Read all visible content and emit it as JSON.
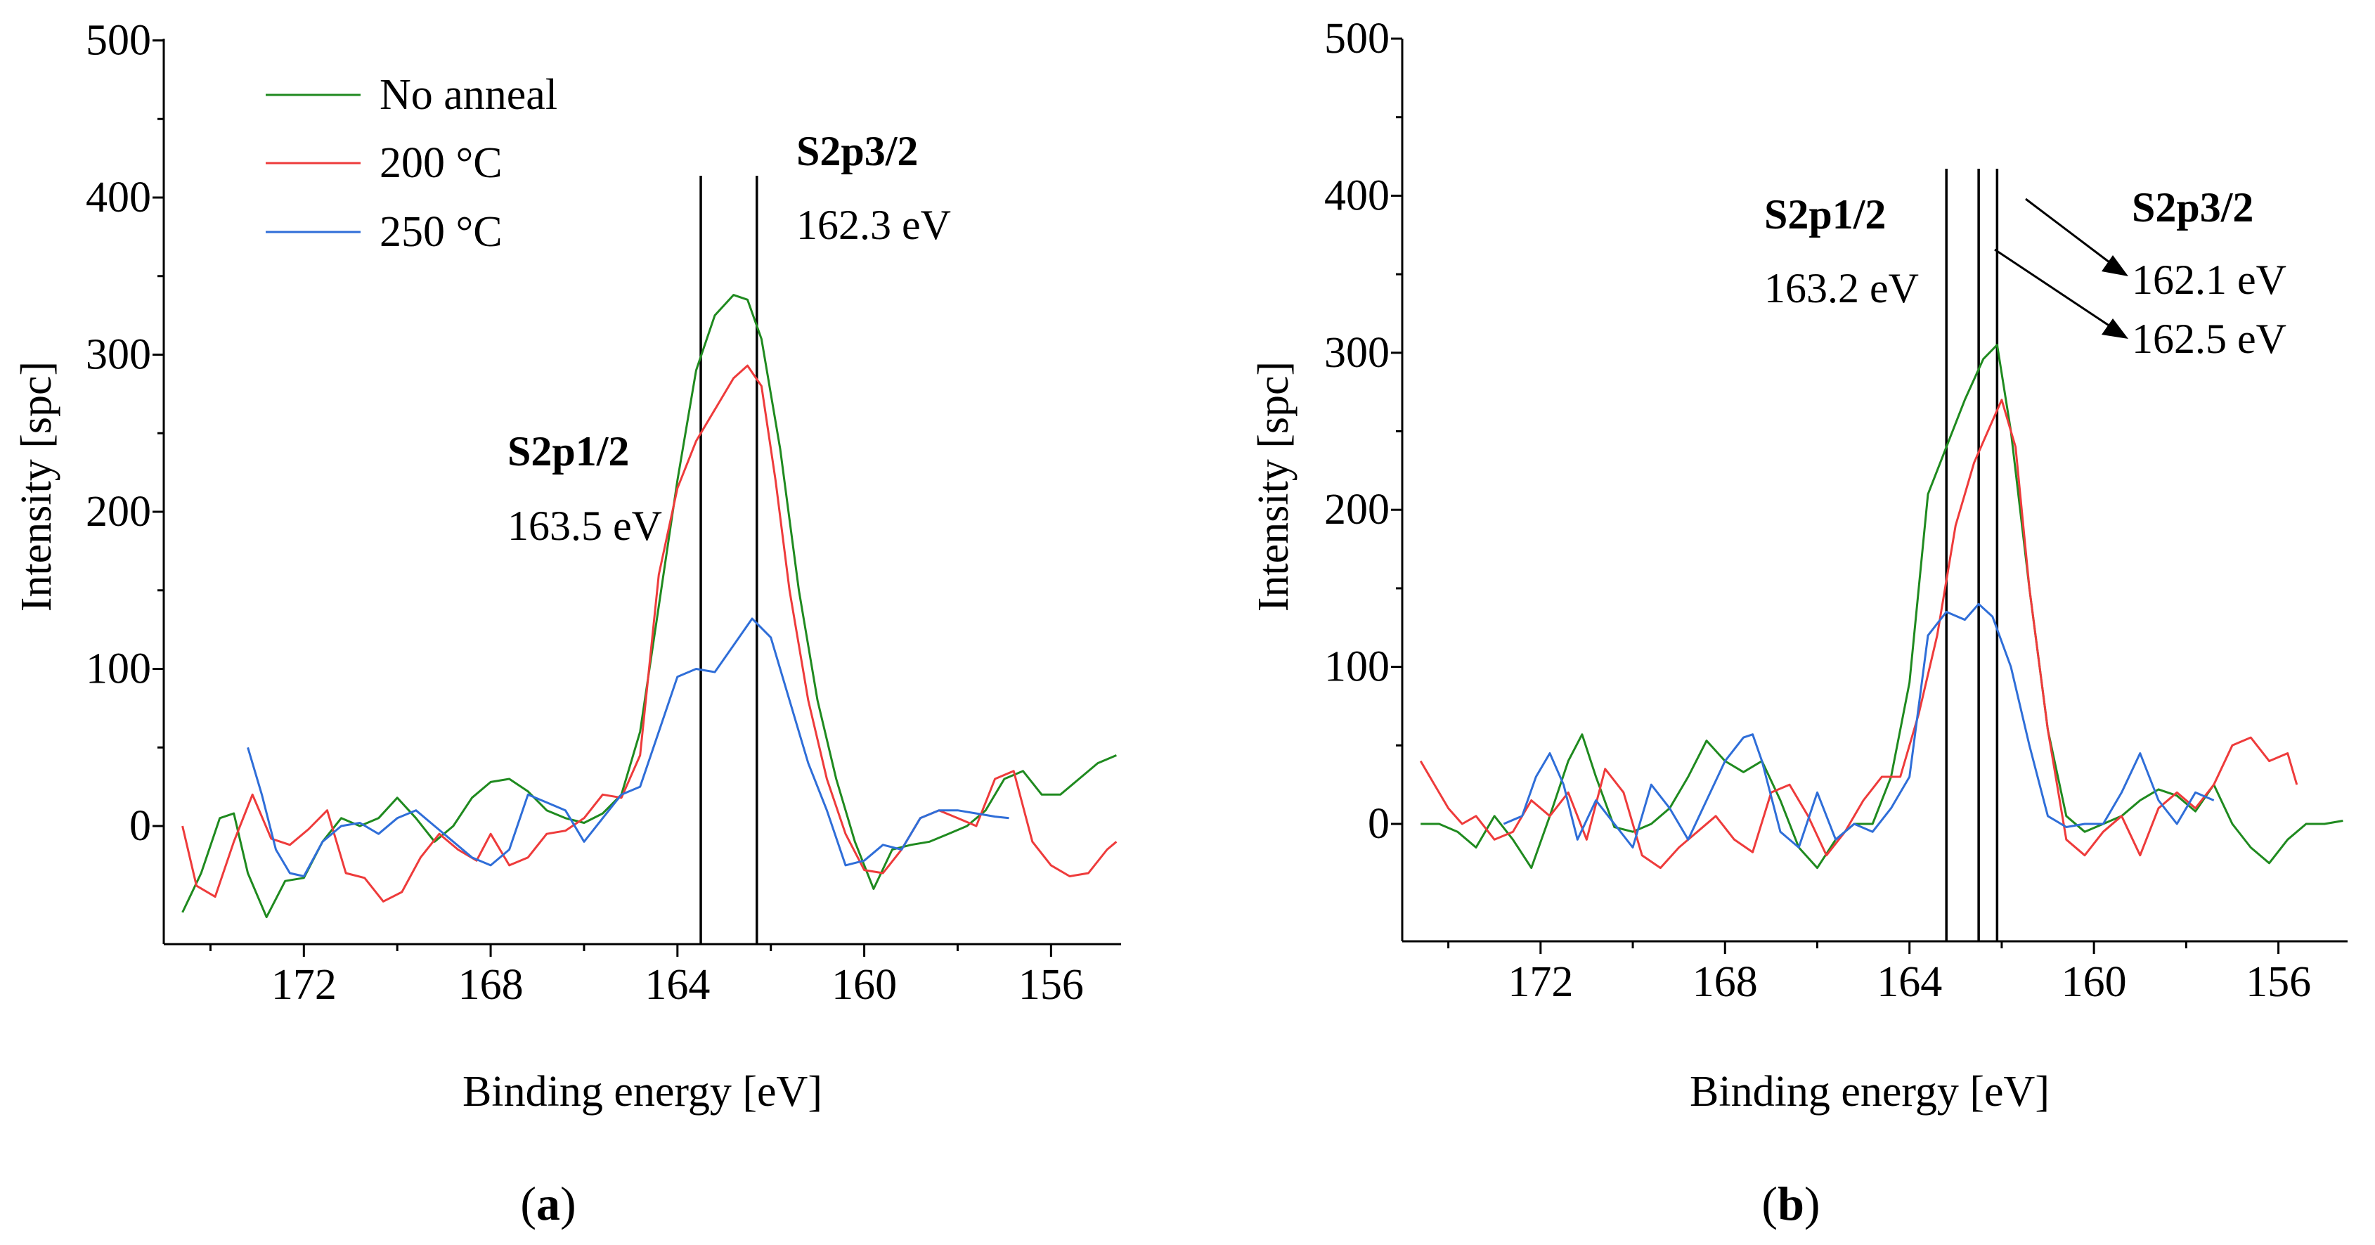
{
  "chart_data": [
    {
      "type": "line",
      "panel_label": "(a)",
      "panel_letter": "a",
      "xlabel": "Binding energy [eV]",
      "ylabel": "Intensity [spc]",
      "xlim": [
        175,
        154.5
      ],
      "ylim": [
        -70,
        500
      ],
      "x_reversed": true,
      "x_ticks": [
        172,
        168,
        164,
        160,
        156
      ],
      "y_ticks": [
        0,
        100,
        200,
        300,
        400,
        500
      ],
      "legend": {
        "placement": "top-left",
        "entries": [
          "No anneal",
          "200 °C",
          "250 °C"
        ]
      },
      "series": [
        {
          "name": "No anneal",
          "color": "#1f8a1f",
          "x": [
            174.6,
            174.2,
            173.8,
            173.5,
            173.2,
            172.8,
            172.4,
            172.0,
            171.6,
            171.2,
            170.8,
            170.4,
            170.0,
            169.6,
            169.2,
            168.8,
            168.4,
            168.0,
            167.6,
            167.2,
            166.8,
            166.4,
            166.0,
            165.6,
            165.2,
            164.8,
            164.4,
            164.0,
            163.6,
            163.2,
            162.8,
            162.5,
            162.2,
            161.8,
            161.4,
            161.0,
            160.6,
            160.2,
            159.8,
            159.4,
            159.0,
            158.6,
            158.2,
            157.8,
            157.4,
            157.0,
            156.6,
            156.2,
            155.8,
            155.4,
            155.0,
            154.6
          ],
          "y": [
            -55,
            -30,
            5,
            8,
            -30,
            -58,
            -35,
            -33,
            -10,
            5,
            0,
            5,
            18,
            5,
            -10,
            0,
            18,
            28,
            30,
            22,
            10,
            5,
            2,
            8,
            20,
            60,
            140,
            220,
            290,
            325,
            338,
            335,
            310,
            240,
            150,
            80,
            30,
            -10,
            -40,
            -15,
            -12,
            -10,
            -5,
            0,
            10,
            30,
            35,
            20,
            20,
            30,
            40,
            45
          ]
        },
        {
          "name": "200 °C",
          "color": "#ee3b3b",
          "x": [
            174.6,
            174.3,
            173.9,
            173.5,
            173.1,
            172.7,
            172.3,
            171.9,
            171.5,
            171.1,
            170.7,
            170.3,
            169.9,
            169.5,
            169.1,
            168.7,
            168.3,
            168.0,
            167.6,
            167.2,
            166.8,
            166.4,
            166.0,
            165.6,
            165.2,
            164.8,
            164.4,
            164.0,
            163.6,
            163.2,
            162.8,
            162.5,
            162.2,
            161.9,
            161.6,
            161.2,
            160.8,
            160.4,
            160.0,
            159.6,
            159.2,
            158.8,
            158.4,
            158.0,
            157.6,
            157.2,
            156.8,
            156.4,
            156.0,
            155.6,
            155.2,
            154.8,
            154.6
          ],
          "y": [
            0,
            -38,
            -45,
            -10,
            20,
            -8,
            -12,
            -2,
            10,
            -30,
            -33,
            -48,
            -42,
            -20,
            -5,
            -15,
            -22,
            -5,
            -25,
            -20,
            -5,
            -3,
            5,
            20,
            18,
            45,
            160,
            215,
            245,
            265,
            285,
            293,
            280,
            220,
            150,
            80,
            30,
            -5,
            -28,
            -30,
            -15,
            5,
            10,
            5,
            0,
            30,
            35,
            -10,
            -25,
            -32,
            -30,
            -15,
            -10
          ]
        },
        {
          "name": "250 °C",
          "color": "#2f6ed8",
          "x": [
            173.2,
            172.9,
            172.6,
            172.3,
            172.0,
            171.6,
            171.2,
            170.8,
            170.4,
            170.0,
            169.6,
            169.2,
            168.8,
            168.4,
            168.0,
            167.6,
            167.2,
            166.8,
            166.4,
            166.0,
            165.6,
            165.2,
            164.8,
            164.4,
            164.0,
            163.6,
            163.2,
            162.8,
            162.4,
            162.0,
            161.6,
            161.2,
            160.8,
            160.4,
            160.0,
            159.6,
            159.2,
            158.8,
            158.4,
            158.0,
            157.6,
            157.2,
            156.9
          ],
          "y": [
            50,
            20,
            -15,
            -30,
            -32,
            -10,
            0,
            2,
            -5,
            5,
            10,
            0,
            -10,
            -20,
            -25,
            -15,
            20,
            15,
            10,
            -10,
            5,
            20,
            25,
            60,
            95,
            100,
            98,
            115,
            132,
            120,
            80,
            40,
            10,
            -25,
            -22,
            -12,
            -15,
            5,
            10,
            10,
            8,
            6,
            5
          ]
        }
      ],
      "reference_lines_x": [
        163.5,
        162.3
      ],
      "annotations": [
        {
          "bold": "S2p3/2",
          "value": "162.3 eV"
        },
        {
          "bold": "S2p1/2",
          "value": "163.5 eV"
        }
      ]
    },
    {
      "type": "line",
      "panel_label": "(b)",
      "panel_letter": "b",
      "xlabel": "Binding energy [eV]",
      "ylabel": "Intensity [spc]",
      "xlim": [
        175,
        154.5
      ],
      "ylim": [
        -70,
        500
      ],
      "x_reversed": true,
      "x_ticks": [
        172,
        168,
        164,
        160,
        156
      ],
      "y_ticks": [
        0,
        100,
        200,
        300,
        400,
        500
      ],
      "series": [
        {
          "name": "No anneal",
          "color": "#1f8a1f",
          "x": [
            174.6,
            174.2,
            173.8,
            173.4,
            173.0,
            172.6,
            172.2,
            171.8,
            171.4,
            171.1,
            170.8,
            170.4,
            170.0,
            169.6,
            169.2,
            168.8,
            168.4,
            168.0,
            167.6,
            167.2,
            166.8,
            166.4,
            166.0,
            165.6,
            165.2,
            164.8,
            164.4,
            164.0,
            163.6,
            163.2,
            162.8,
            162.4,
            162.1,
            161.8,
            161.4,
            161.0,
            160.6,
            160.2,
            159.8,
            159.4,
            159.0,
            158.6,
            158.2,
            157.8,
            157.4,
            157.0,
            156.6,
            156.2,
            155.8,
            155.4,
            155.0,
            154.6
          ],
          "y": [
            0,
            0,
            -5,
            -15,
            5,
            -10,
            -28,
            5,
            40,
            57,
            30,
            -2,
            -5,
            0,
            10,
            30,
            53,
            40,
            33,
            40,
            15,
            -15,
            -28,
            -10,
            0,
            0,
            30,
            90,
            210,
            240,
            270,
            296,
            305,
            250,
            150,
            60,
            5,
            -5,
            0,
            5,
            15,
            22,
            18,
            8,
            25,
            0,
            -15,
            -25,
            -10,
            0,
            0,
            2
          ]
        },
        {
          "name": "200 °C",
          "color": "#ee3b3b",
          "x": [
            174.6,
            174.3,
            174.0,
            173.7,
            173.4,
            173.0,
            172.6,
            172.2,
            171.8,
            171.4,
            171.0,
            170.6,
            170.2,
            169.8,
            169.4,
            169.0,
            168.6,
            168.2,
            167.8,
            167.4,
            167.0,
            166.6,
            166.2,
            165.8,
            165.4,
            165.0,
            164.6,
            164.2,
            163.8,
            163.4,
            163.0,
            162.6,
            162.3,
            162.0,
            161.7,
            161.4,
            161.0,
            160.6,
            160.2,
            159.8,
            159.4,
            159.0,
            158.6,
            158.2,
            157.8,
            157.4,
            157.0,
            156.6,
            156.2,
            155.8,
            155.6
          ],
          "y": [
            40,
            25,
            10,
            0,
            5,
            -10,
            -5,
            15,
            5,
            20,
            -10,
            35,
            20,
            -20,
            -28,
            -15,
            -5,
            5,
            -10,
            -18,
            20,
            25,
            5,
            -20,
            -5,
            15,
            30,
            30,
            70,
            120,
            190,
            230,
            250,
            270,
            240,
            150,
            60,
            -10,
            -20,
            -5,
            5,
            -20,
            10,
            20,
            10,
            25,
            50,
            55,
            40,
            45,
            25
          ]
        },
        {
          "name": "250 °C",
          "color": "#2f6ed8",
          "x": [
            172.8,
            172.4,
            172.1,
            171.8,
            171.5,
            171.2,
            170.8,
            170.4,
            170.0,
            169.6,
            169.2,
            168.8,
            168.4,
            168.0,
            167.6,
            167.4,
            167.2,
            166.8,
            166.4,
            166.0,
            165.6,
            165.2,
            164.8,
            164.4,
            164.0,
            163.6,
            163.2,
            162.8,
            162.5,
            162.2,
            161.8,
            161.4,
            161.0,
            160.6,
            160.2,
            159.8,
            159.4,
            159.0,
            158.6,
            158.2,
            157.8,
            157.4
          ],
          "y": [
            0,
            5,
            30,
            45,
            25,
            -10,
            15,
            0,
            -15,
            25,
            10,
            -10,
            15,
            40,
            55,
            57,
            40,
            -5,
            -15,
            20,
            -10,
            0,
            -5,
            10,
            30,
            120,
            135,
            130,
            140,
            132,
            100,
            50,
            5,
            -2,
            0,
            0,
            20,
            45,
            15,
            0,
            20,
            15
          ]
        }
      ],
      "reference_lines_x": [
        163.2,
        162.5,
        162.1
      ],
      "annotations": [
        {
          "bold": "S2p1/2",
          "value": "163.2 eV"
        },
        {
          "bold": "S2p3/2",
          "value": "162.1 eV"
        },
        {
          "value": "162.5 eV"
        }
      ]
    }
  ]
}
